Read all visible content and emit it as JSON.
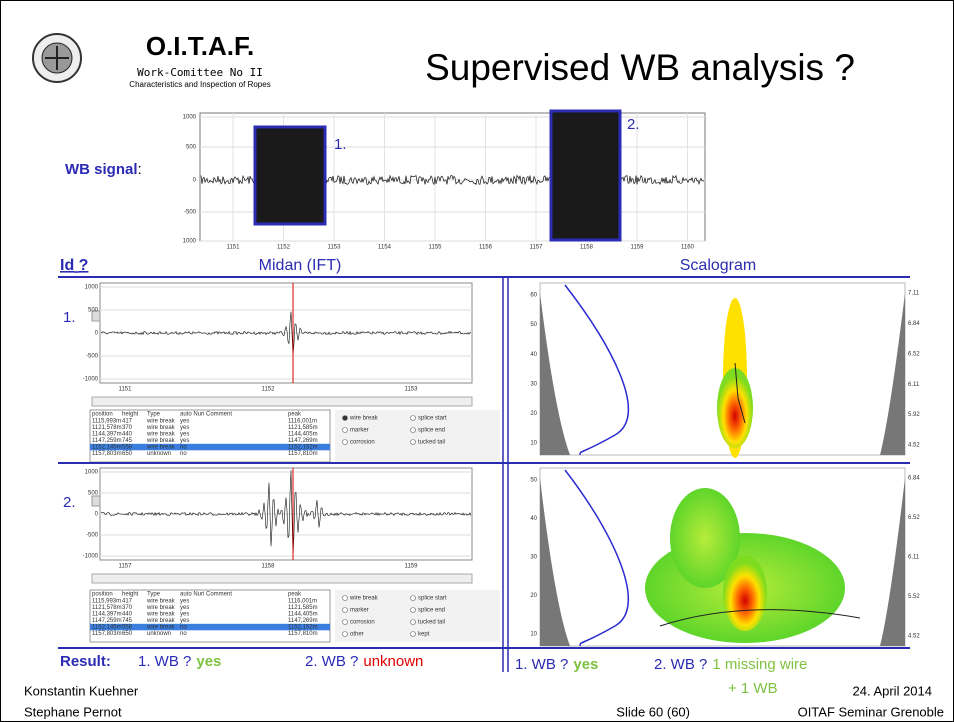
{
  "header": {
    "org": "O.I.T.A.F.",
    "committee": "Work-Comittee No II",
    "subtitle": "Characteristics and Inspection of Ropes",
    "title": "Supervised WB analysis ?"
  },
  "wb_signal": {
    "label": "WB signal",
    "colon": ":",
    "yticks": [
      "1000",
      "500",
      "0",
      "-500",
      "1000"
    ],
    "xticks": [
      "1151",
      "1152",
      "1153",
      "1154",
      "1155",
      "1156",
      "1157",
      "1158",
      "1159",
      "1160"
    ],
    "markers": [
      "1.",
      "2."
    ]
  },
  "columns": {
    "id": "Id",
    "question": "?",
    "midan": "Midan (IFT)",
    "scalogram": "Scalogram"
  },
  "panels": [
    {
      "marker": "1.",
      "yticks": [
        "1000",
        "500",
        "0",
        "-500",
        "-1000"
      ],
      "xticks": [
        "1151",
        "1152",
        "1153"
      ],
      "table_header": [
        "position",
        "height",
        "Type",
        "auto Nuri Comment",
        "peak"
      ],
      "rows": [
        [
          "1115,993m",
          "417",
          "wire break",
          "yes",
          "1116,001m"
        ],
        [
          "1121,578m",
          "370",
          "wire break",
          "yes",
          "1121,585m"
        ],
        [
          "1144,397m",
          "440",
          "wire break",
          "yes",
          "1144,405m"
        ],
        [
          "1147,259m",
          "745",
          "wire break",
          "yes",
          "1147,269m"
        ],
        [
          "1152,145m",
          "558",
          "wire break",
          "no",
          "1152,152m"
        ],
        [
          "1157,803m",
          "650",
          "unknown",
          "no",
          "1157,810m"
        ]
      ],
      "options": [
        "wire break",
        "splice start",
        "marker",
        "splice end",
        "corrosion",
        "tucked tail"
      ],
      "scalogram_left": [
        "60",
        "50",
        "40",
        "30",
        "20",
        "10"
      ],
      "scalogram_right": [
        "7.11",
        "6.84",
        "6.52",
        "6.11",
        "5.92",
        "4.52"
      ]
    },
    {
      "marker": "2.",
      "yticks": [
        "1000",
        "500",
        "0",
        "-500",
        "-1000"
      ],
      "xticks": [
        "1157",
        "1158",
        "1159"
      ],
      "table_header": [
        "position",
        "height",
        "Type",
        "auto Nuri Comment",
        "peak"
      ],
      "rows": [
        [
          "1115,993m",
          "417",
          "wire break",
          "yes",
          "1116,001m"
        ],
        [
          "1121,578m",
          "370",
          "wire break",
          "yes",
          "1121,585m"
        ],
        [
          "1144,397m",
          "440",
          "wire break",
          "yes",
          "1144,405m"
        ],
        [
          "1147,259m",
          "745",
          "wire break",
          "yes",
          "1147,269m"
        ],
        [
          "1152,145m",
          "558",
          "wire break",
          "no",
          "1152,152m"
        ],
        [
          "1157,803m",
          "650",
          "unknown",
          "no",
          "1157,810m"
        ]
      ],
      "options": [
        "wire break",
        "splice start",
        "marker",
        "splice end",
        "corrosion",
        "tucked tail",
        "other",
        "kept"
      ],
      "scalogram_left": [
        "50",
        "40",
        "30",
        "20",
        "10"
      ],
      "scalogram_right": [
        "6.84",
        "6.52",
        "6.11",
        "5.52",
        "4.52"
      ]
    }
  ],
  "result": {
    "label": "Result:",
    "midan_1": "1. WB ?",
    "midan_1_answer": "yes",
    "midan_2": "2. WB ?",
    "midan_2_answer": "unknown",
    "scal_1": "1. WB ?",
    "scal_1_answer": "yes",
    "scal_2": "2. WB ?",
    "scal_2_answer": "1 missing wire",
    "scal_2_extra": "+ 1 WB"
  },
  "footer": {
    "author_1": "Konstantin Kuehner",
    "author_2": "Stephane Pernot",
    "date": "24. April 2014",
    "slide": "Slide 60 (60)",
    "event": "OITAF Seminar Grenoble"
  }
}
